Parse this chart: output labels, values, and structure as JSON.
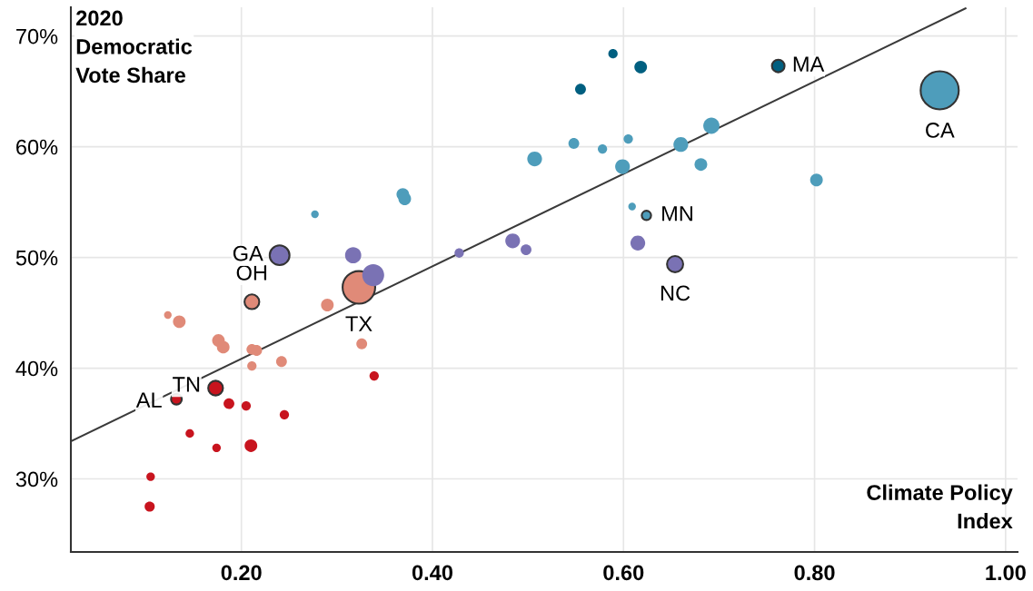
{
  "chart_data": {
    "type": "bubble",
    "ylabel": "2020\nDemocratic\nVote Share",
    "xlabel": "Climate Policy\nIndex",
    "xlim": [
      0.0215,
      1.0125
    ],
    "ylim": [
      23.4,
      72.6
    ],
    "xticks": [
      {
        "value": 0.2,
        "label": "0.20"
      },
      {
        "value": 0.4,
        "label": "0.40"
      },
      {
        "value": 0.6,
        "label": "0.60"
      },
      {
        "value": 0.8,
        "label": "0.80"
      },
      {
        "value": 1.0,
        "label": "1.00"
      }
    ],
    "yticks": [
      {
        "value": 30,
        "label": "30%"
      },
      {
        "value": 40,
        "label": "40%"
      },
      {
        "value": 50,
        "label": "50%"
      },
      {
        "value": 60,
        "label": "60%"
      },
      {
        "value": 70,
        "label": "70%"
      }
    ],
    "grid": true,
    "series": [
      {
        "type": "line",
        "color": "#3a3a3a",
        "x": [
          0.0215,
          0.958
        ],
        "values": [
          33.4,
          72.5
        ]
      },
      {
        "color": "#c8141e",
        "x": [
          0.173,
          0.132,
          0.187,
          0.205,
          0.245,
          0.146,
          0.174,
          0.21,
          0.105,
          0.104,
          0.339
        ],
        "values": [
          38.2,
          37.2,
          36.8,
          36.6,
          35.8,
          34.1,
          32.8,
          33.0,
          30.2,
          27.5,
          39.3
        ],
        "sizes": [
          0.15,
          0.08,
          0.08,
          0.06,
          0.06,
          0.05,
          0.05,
          0.11,
          0.05,
          0.07,
          0.06
        ],
        "value_labels": [
          "TN",
          "AL",
          null,
          null,
          null,
          null,
          null,
          null,
          null,
          null,
          null
        ]
      },
      {
        "color": "#e08a78",
        "x": [
          0.323,
          0.211,
          0.29,
          0.123,
          0.135,
          0.176,
          0.181,
          0.211,
          0.216,
          0.211,
          0.242,
          0.326
        ],
        "values": [
          47.3,
          46.0,
          45.7,
          44.8,
          44.2,
          42.5,
          41.9,
          41.7,
          41.6,
          40.2,
          40.6,
          42.2
        ],
        "sizes": [
          0.73,
          0.15,
          0.11,
          0.04,
          0.11,
          0.11,
          0.11,
          0.08,
          0.08,
          0.06,
          0.08,
          0.08
        ],
        "value_labels": [
          "TX",
          "OH",
          null,
          null,
          null,
          null,
          null,
          null,
          null,
          null,
          null,
          null
        ]
      },
      {
        "color": "#7a72b4",
        "x": [
          0.24,
          0.654,
          0.317,
          0.338,
          0.428,
          0.484,
          0.498,
          0.615
        ],
        "values": [
          50.2,
          49.4,
          50.2,
          48.4,
          50.4,
          51.5,
          50.7,
          51.3
        ],
        "sizes": [
          0.27,
          0.18,
          0.18,
          0.33,
          0.06,
          0.15,
          0.08,
          0.15
        ],
        "value_labels": [
          "GA",
          "NC",
          null,
          null,
          null,
          null,
          null,
          null
        ]
      },
      {
        "color": "#4e9dbb",
        "x": [
          0.931,
          0.624,
          0.609,
          0.277,
          0.369,
          0.371,
          0.507,
          0.548,
          0.578,
          0.605,
          0.599,
          0.66,
          0.692,
          0.681,
          0.802
        ],
        "values": [
          65.1,
          53.8,
          54.6,
          53.9,
          55.7,
          55.3,
          58.9,
          60.3,
          59.8,
          60.7,
          58.2,
          60.2,
          61.9,
          58.4,
          57.0
        ],
        "sizes": [
          1,
          0.06,
          0.04,
          0.04,
          0.11,
          0.11,
          0.15,
          0.08,
          0.06,
          0.06,
          0.15,
          0.15,
          0.18,
          0.11,
          0.11
        ],
        "value_labels": [
          "CA",
          "MN",
          null,
          null,
          null,
          null,
          null,
          null,
          null,
          null,
          null,
          null,
          null,
          null,
          null
        ]
      },
      {
        "color": "#005f80",
        "x": [
          0.762,
          0.589,
          0.555,
          0.618
        ],
        "values": [
          67.3,
          68.4,
          65.2,
          67.2
        ],
        "sizes": [
          0.11,
          0.06,
          0.08,
          0.11
        ],
        "value_labels": [
          "MA",
          null,
          null,
          null
        ]
      }
    ]
  }
}
